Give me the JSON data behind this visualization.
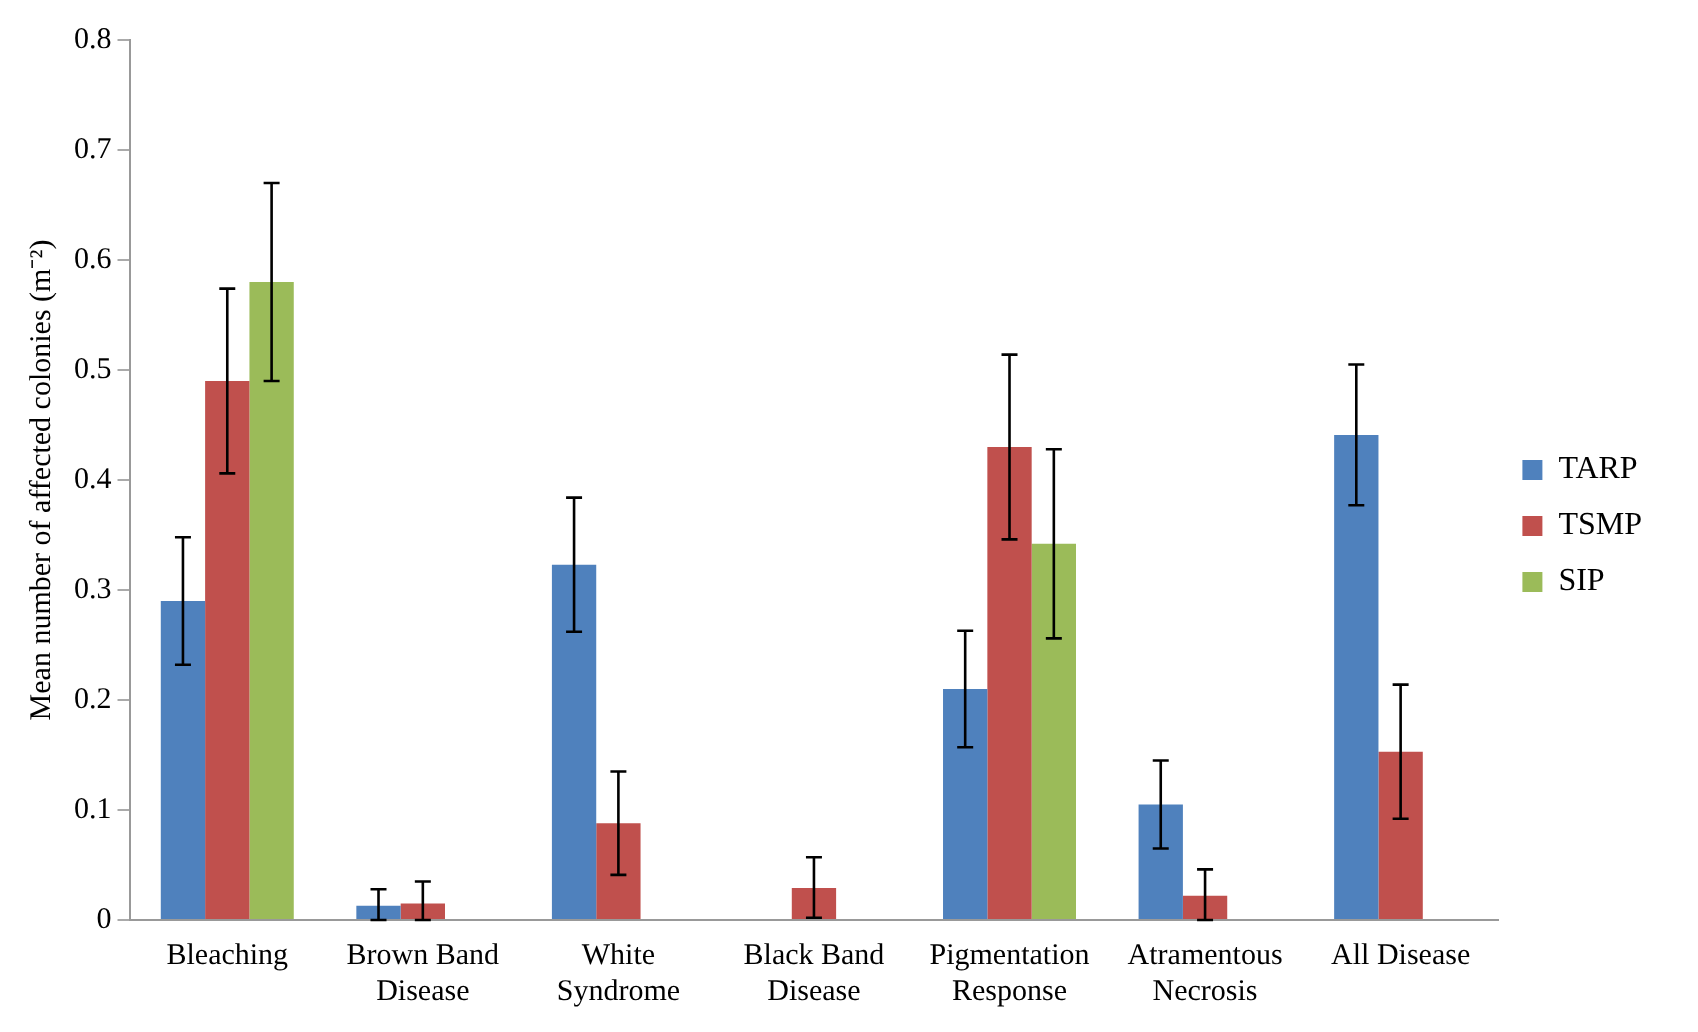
{
  "chart_data": {
    "type": "bar",
    "ylabel": "Mean number of affected colonies (m⁻²)",
    "categories": [
      "Bleaching",
      "Brown Band Disease",
      "White Syndrome",
      "Black Band Disease",
      "Pigmentation Response",
      "Atramentous Necrosis",
      "All Disease"
    ],
    "series": [
      {
        "name": "TARP",
        "color": "#4f81bd",
        "values": [
          0.29,
          0.013,
          0.323,
          0,
          0.21,
          0.105,
          0.441
        ],
        "errors": [
          0.058,
          [
            0,
            0.028
          ],
          0.061,
          null,
          0.053,
          0.04,
          0.064
        ]
      },
      {
        "name": "TSMP",
        "color": "#c0504d",
        "values": [
          0.49,
          0.015,
          0.088,
          0.029,
          0.43,
          0.022,
          0.153
        ],
        "errors": [
          0.084,
          [
            0,
            0.035
          ],
          0.047,
          [
            0.002,
            0.057
          ],
          0.084,
          [
            0,
            0.046
          ],
          0.061
        ]
      },
      {
        "name": "SIP",
        "color": "#9bbb59",
        "values": [
          0.58,
          0,
          0,
          0,
          0.342,
          0,
          0
        ],
        "errors": [
          0.09,
          null,
          null,
          null,
          0.086,
          null,
          null
        ]
      }
    ],
    "ylim": [
      0,
      0.8
    ],
    "yticks": [
      0,
      0.1,
      0.2,
      0.3,
      0.4,
      0.5,
      0.6,
      0.7,
      0.8
    ],
    "grid": false,
    "legend": "right"
  }
}
